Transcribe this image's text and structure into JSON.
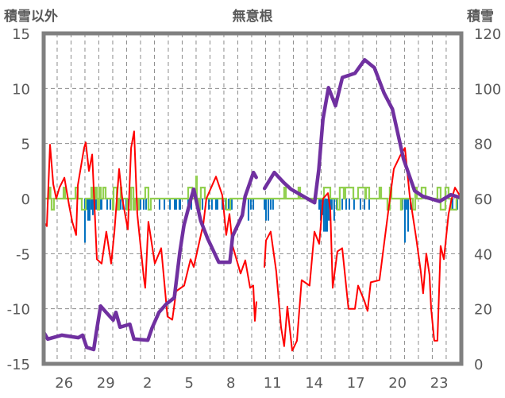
{
  "chart_data": {
    "type": "line",
    "title": "無意根",
    "ylabel_left": "積雪以外",
    "ylabel_right": "積雪",
    "xlabel": "",
    "xlim_days": [
      0,
      30.06
    ],
    "ylim_left": [
      -15,
      15
    ],
    "ylim_right": [
      0,
      120
    ],
    "yticks_left": [
      "15",
      "10",
      "5",
      "0",
      "-5",
      "-10",
      "-15"
    ],
    "yticks_left_values": [
      15,
      10,
      5,
      0,
      -5,
      -10,
      -15
    ],
    "yticks_right": [
      "120",
      "100",
      "80",
      "60",
      "40",
      "20",
      "0"
    ],
    "yticks_right_values": [
      120,
      100,
      80,
      60,
      40,
      20,
      0
    ],
    "xticks": [
      {
        "label": "26",
        "day": 1.47
      },
      {
        "label": "29",
        "day": 4.47
      },
      {
        "label": "2",
        "day": 7.47
      },
      {
        "label": "5",
        "day": 10.47
      },
      {
        "label": "8",
        "day": 13.47
      },
      {
        "label": "11",
        "day": 16.47
      },
      {
        "label": "14",
        "day": 19.47
      },
      {
        "label": "17",
        "day": 22.47
      },
      {
        "label": "20",
        "day": 25.47
      },
      {
        "label": "23",
        "day": 28.47
      }
    ],
    "day_gridlines_start": 0.97,
    "day_gridlines_count": 29,
    "grid": true,
    "legend": "none",
    "series": [
      {
        "name": "red",
        "axis": "left",
        "color": "#ff0000",
        "points": [
          [
            0,
            -2.1
          ],
          [
            0.23,
            -2.5
          ],
          [
            0.46,
            4.9
          ],
          [
            0.69,
            1.3
          ],
          [
            0.91,
            0
          ],
          [
            1.14,
            1
          ],
          [
            1.49,
            1.9
          ],
          [
            1.83,
            -0.6
          ],
          [
            2.06,
            -2.1
          ],
          [
            2.34,
            -3.3
          ],
          [
            2.46,
            1.2
          ],
          [
            2.91,
            4.6
          ],
          [
            3.03,
            5.1
          ],
          [
            3.26,
            2.5
          ],
          [
            3.49,
            4
          ],
          [
            3.83,
            -5.5
          ],
          [
            4.17,
            -5.9
          ],
          [
            4.51,
            -3
          ],
          [
            4.86,
            -5.9
          ],
          [
            5.09,
            -3
          ],
          [
            5.43,
            2.7
          ],
          [
            5.66,
            0
          ],
          [
            6.06,
            -2.8
          ],
          [
            6.29,
            4.6
          ],
          [
            6.51,
            6.1
          ],
          [
            6.74,
            -1.4
          ],
          [
            7.2,
            -7.1
          ],
          [
            7.31,
            -8.1
          ],
          [
            7.54,
            -2.1
          ],
          [
            8,
            -5.9
          ],
          [
            8.46,
            -4.5
          ],
          [
            8.91,
            -10.7
          ],
          [
            9.26,
            -11
          ],
          [
            9.54,
            -8.4
          ],
          [
            10.11,
            -7.9
          ],
          [
            10.57,
            -5.5
          ],
          [
            10.8,
            -6.2
          ],
          [
            11.14,
            -4.3
          ],
          [
            11.49,
            -2.3
          ],
          [
            11.71,
            0
          ],
          [
            12.4,
            2
          ],
          [
            12.86,
            0.3
          ],
          [
            13.14,
            -3.3
          ],
          [
            13.37,
            -1.4
          ],
          [
            13.6,
            -4.3
          ],
          [
            14.17,
            -6.8
          ],
          [
            14.51,
            -5.6
          ],
          [
            14.86,
            -8.1
          ],
          [
            15.09,
            -7.9
          ],
          [
            15.2,
            -11.1
          ],
          [
            15.31,
            -9.4
          ],
          null,
          [
            15.89,
            -6.2
          ],
          [
            16,
            -3.8
          ],
          [
            16.34,
            -3
          ],
          [
            16.74,
            -6.6
          ],
          [
            17.09,
            -11.7
          ],
          [
            17.31,
            -13.4
          ],
          [
            17.54,
            -9.8
          ],
          [
            17.89,
            -13.8
          ],
          [
            18.23,
            -12.9
          ],
          [
            18.57,
            -7.4
          ],
          [
            19.14,
            -7.9
          ],
          [
            19.49,
            -3
          ],
          [
            19.83,
            -4.1
          ],
          [
            20.11,
            0
          ],
          [
            20.46,
            0.5
          ],
          [
            20.63,
            -1
          ],
          [
            20.8,
            -8.1
          ],
          [
            21.14,
            -4.8
          ],
          [
            21.49,
            -4.5
          ],
          [
            21.94,
            -10
          ],
          [
            22.4,
            -10
          ],
          [
            22.63,
            -7.9
          ],
          [
            23.09,
            -9.3
          ],
          [
            23.31,
            -10.2
          ],
          [
            23.54,
            -7.6
          ],
          [
            24.17,
            -7.4
          ],
          [
            24.51,
            -4
          ],
          [
            24.86,
            -0.6
          ],
          [
            25.2,
            2.7
          ],
          [
            25.66,
            3.9
          ],
          [
            26,
            4.6
          ],
          [
            26.34,
            0.3
          ],
          [
            26.8,
            -3.5
          ],
          [
            27.14,
            -6.6
          ],
          [
            27.31,
            -8.6
          ],
          [
            27.54,
            -5
          ],
          [
            27.77,
            -6.9
          ],
          [
            27.89,
            -10
          ],
          [
            28.11,
            -12.9
          ],
          [
            28.34,
            -12.9
          ],
          [
            28.57,
            -4.3
          ],
          [
            28.8,
            -5.5
          ],
          [
            29.14,
            -1.4
          ],
          [
            29.37,
            0
          ],
          [
            29.6,
            1
          ],
          [
            29.94,
            0.3
          ]
        ]
      },
      {
        "name": "purple",
        "axis": "right",
        "color": "#7030a0",
        "points": [
          [
            0,
            11.5
          ],
          [
            0.3,
            9
          ],
          [
            1.3,
            10.4
          ],
          [
            2.5,
            9.5
          ],
          [
            2.8,
            10.4
          ],
          [
            3.1,
            6
          ],
          [
            3.6,
            5.2
          ],
          [
            3.8,
            11.8
          ],
          [
            4.1,
            21
          ],
          [
            4.5,
            18.7
          ],
          [
            5.0,
            15.9
          ],
          [
            5.2,
            18.7
          ],
          [
            5.5,
            13.3
          ],
          [
            6.2,
            14.4
          ],
          [
            6.5,
            9
          ],
          [
            7.5,
            8.6
          ],
          [
            7.8,
            13
          ],
          [
            8.3,
            18.7
          ],
          [
            8.8,
            21.6
          ],
          [
            9.4,
            24
          ],
          [
            9.8,
            40.6
          ],
          [
            10.1,
            50.4
          ],
          [
            10.6,
            60
          ],
          [
            10.8,
            63.4
          ],
          [
            11.3,
            52
          ],
          [
            11.8,
            45.5
          ],
          [
            12.6,
            36.9
          ],
          [
            13.4,
            36.9
          ],
          [
            13.6,
            46.4
          ],
          [
            14.3,
            54
          ],
          [
            14.5,
            60.8
          ],
          [
            15.1,
            69.5
          ],
          [
            15.3,
            67.7
          ],
          null,
          [
            15.9,
            63.7
          ],
          [
            16.6,
            69.5
          ],
          [
            17.3,
            65.7
          ],
          [
            17.8,
            63.4
          ],
          [
            18.7,
            60.8
          ],
          [
            19.5,
            58.5
          ],
          [
            19.8,
            70.6
          ],
          [
            20.1,
            88.8
          ],
          [
            20.5,
            100.3
          ],
          [
            21.0,
            93.7
          ],
          [
            21.5,
            104
          ],
          [
            22.4,
            105.5
          ],
          [
            23.1,
            110.4
          ],
          [
            23.8,
            107.5
          ],
          [
            24.5,
            98.3
          ],
          [
            25.1,
            92.5
          ],
          [
            25.9,
            74.4
          ],
          [
            26.7,
            62.8
          ],
          [
            27.3,
            60.8
          ],
          [
            28.5,
            59
          ],
          [
            29.3,
            61.4
          ],
          [
            29.9,
            60.5
          ]
        ]
      },
      {
        "name": "green",
        "axis": "left",
        "color": "#92d050",
        "type": "step",
        "pulses": [
          [
            0.4,
            0.49,
            1
          ],
          [
            0.57,
            0.74,
            -1
          ],
          [
            1.43,
            1.54,
            1
          ],
          [
            2.29,
            2.46,
            1
          ],
          [
            2.74,
            3.03,
            -1
          ],
          [
            3.43,
            3.54,
            1
          ],
          [
            3.71,
            3.83,
            1
          ],
          [
            3.89,
            4,
            -1
          ],
          [
            4,
            4.11,
            1
          ],
          [
            4.29,
            4.46,
            1
          ],
          [
            4.97,
            5.03,
            -1
          ],
          [
            5.03,
            5.26,
            1
          ],
          [
            5.31,
            5.43,
            -1
          ],
          [
            5.54,
            5.6,
            1
          ],
          [
            6,
            6.29,
            -1
          ],
          [
            6.29,
            6.46,
            1
          ],
          [
            6.46,
            6.57,
            -1
          ],
          [
            6.74,
            6.86,
            -1
          ],
          [
            7.31,
            7.54,
            1
          ],
          [
            7.54,
            7.71,
            -1
          ],
          [
            10.4,
            10.69,
            1
          ],
          [
            10.97,
            11.03,
            2
          ],
          [
            11.14,
            11.26,
            -1
          ],
          [
            11.31,
            11.6,
            1
          ],
          [
            13.14,
            13.43,
            -1
          ],
          [
            17.31,
            17.43,
            1
          ],
          [
            18.34,
            18.46,
            1
          ],
          [
            20.17,
            20.63,
            1
          ],
          [
            21.14,
            21.31,
            -1
          ],
          [
            21.31,
            21.6,
            1
          ],
          [
            21.71,
            22.29,
            1
          ],
          [
            22.63,
            23.14,
            1
          ],
          [
            23.2,
            23.43,
            1
          ],
          [
            24.17,
            24.29,
            1
          ],
          [
            24.74,
            24.91,
            -1
          ],
          [
            24.91,
            25.03,
            1
          ],
          [
            25.71,
            25.77,
            -1
          ],
          [
            26.57,
            26.74,
            -1
          ],
          [
            26.74,
            26.86,
            1
          ],
          [
            27.2,
            27.49,
            1
          ],
          [
            28.34,
            28.57,
            1
          ],
          [
            28.57,
            28.91,
            -1
          ],
          [
            28.91,
            29.14,
            1
          ],
          [
            29.31,
            29.71,
            -1
          ]
        ]
      },
      {
        "name": "blue",
        "axis": "left",
        "color": "#0070c0",
        "type": "bar",
        "bar_width_days": 0.11,
        "points": [
          [
            2.97,
            -4
          ],
          [
            3.09,
            -1
          ],
          [
            3.2,
            -2
          ],
          [
            3.31,
            -2
          ],
          [
            3.43,
            -1
          ],
          [
            3.54,
            -1.5
          ],
          [
            3.66,
            -1
          ],
          [
            3.77,
            -1
          ],
          [
            3.89,
            -1
          ],
          [
            4.06,
            -1
          ],
          [
            4.17,
            -1
          ],
          [
            4.57,
            -1
          ],
          [
            4.8,
            -1
          ],
          [
            5.03,
            -1
          ],
          [
            5.37,
            -1
          ],
          [
            5.54,
            -1
          ],
          [
            5.71,
            -1
          ],
          [
            5.94,
            -1
          ],
          [
            6.11,
            -1
          ],
          [
            6.29,
            -1
          ],
          [
            6.51,
            -1
          ],
          [
            6.8,
            -1
          ],
          [
            6.97,
            -1
          ],
          [
            7.2,
            -1
          ],
          [
            7.37,
            -1
          ],
          [
            7.54,
            -1
          ],
          [
            8.34,
            -1
          ],
          [
            8.69,
            -1
          ],
          [
            9.09,
            -1
          ],
          [
            9.43,
            -1
          ],
          [
            9.54,
            -1
          ],
          [
            9.77,
            -1
          ],
          [
            9.83,
            -1
          ],
          [
            10.4,
            -1
          ],
          [
            10.63,
            -1
          ],
          [
            11.43,
            -1
          ],
          [
            11.89,
            -1
          ],
          [
            12.11,
            -1
          ],
          [
            12.4,
            -1
          ],
          [
            12.51,
            -1
          ],
          [
            12.86,
            -1
          ],
          [
            13.09,
            -1
          ],
          [
            13.31,
            -1
          ],
          [
            13.54,
            -1
          ],
          [
            14.74,
            -2
          ],
          [
            14.91,
            -1
          ],
          [
            15.09,
            -1
          ],
          [
            15.89,
            -1
          ],
          [
            16,
            -2
          ],
          [
            16.17,
            -2
          ],
          [
            16.34,
            -1
          ],
          [
            16.51,
            -1
          ],
          [
            19.83,
            -1
          ],
          [
            19.94,
            -2
          ],
          [
            20.06,
            -1.5
          ],
          [
            20.17,
            -3
          ],
          [
            20.29,
            -3
          ],
          [
            20.4,
            -3
          ],
          [
            20.51,
            -2
          ],
          [
            20.63,
            -2
          ],
          [
            20.74,
            -1
          ],
          [
            20.91,
            -2
          ],
          [
            21.09,
            -1
          ],
          [
            21.49,
            -1
          ],
          [
            21.77,
            -1
          ],
          [
            22,
            -1
          ],
          [
            22.34,
            -1
          ],
          [
            22.8,
            -1
          ],
          [
            23.09,
            -1
          ],
          [
            23.43,
            -1
          ],
          [
            25.83,
            -1
          ],
          [
            26,
            -4
          ],
          [
            26.11,
            -1
          ],
          [
            26.23,
            -3
          ],
          [
            26.4,
            -1
          ],
          [
            26.57,
            -1
          ],
          [
            29.43,
            -1
          ],
          [
            29.77,
            -1
          ]
        ]
      }
    ]
  }
}
